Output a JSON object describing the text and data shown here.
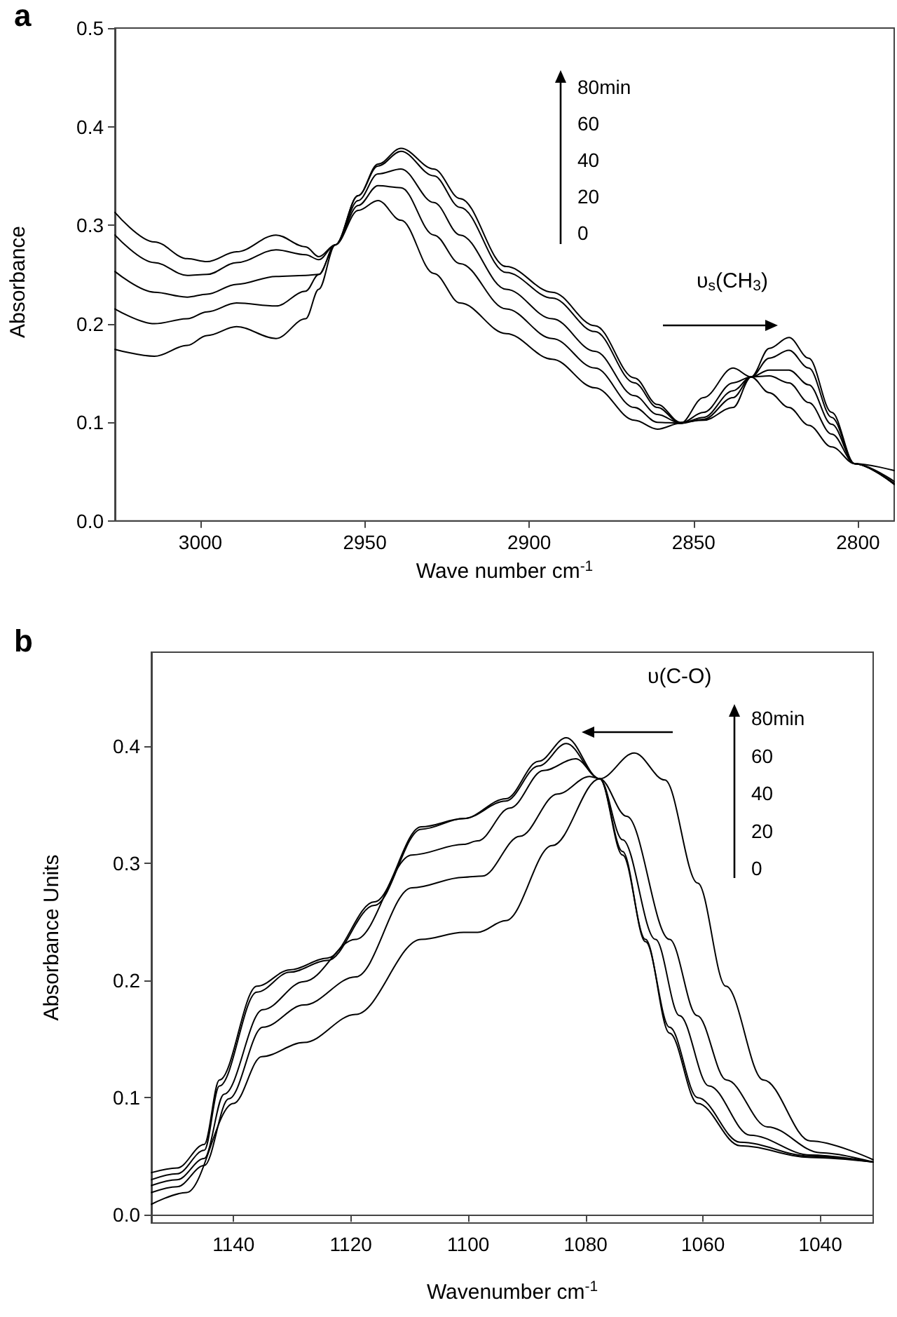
{
  "chart_data": [
    {
      "type": "line",
      "title": "a",
      "xlabel": "Wave number cm$^{-1}$",
      "ylabel": "Absorbance",
      "annotations": [
        "υ$_{s}$(CH$_{3}$)",
        "80min",
        "60",
        "40",
        "20",
        "0"
      ],
      "marker": "none",
      "line_style": "solid",
      "xlim": [
        3026,
        2789
      ],
      "ylim": [
        0,
        0.5
      ],
      "xticks": [
        3000,
        2950,
        2900,
        2850,
        2800
      ],
      "yticks": [
        {
          "value": 0,
          "label": "0.0"
        },
        0.1,
        0.2,
        0.3,
        0.4,
        0.5
      ],
      "x": [
        3026,
        3014,
        3004,
        2998,
        2989,
        2977,
        2968,
        2964,
        2959,
        2952,
        2946,
        2939,
        2929,
        2921,
        2907,
        2893,
        2880,
        2868,
        2861,
        2854,
        2847,
        2838,
        2832.5,
        2827,
        2821,
        2815,
        2808,
        2801,
        2789
      ],
      "series": [
        {
          "color": "#000000",
          "values": [
            0.313,
            0.283,
            0.266,
            0.263,
            0.273,
            0.29,
            0.278,
            0.268,
            0.28,
            0.33,
            0.362,
            0.378,
            0.357,
            0.327,
            0.258,
            0.232,
            0.198,
            0.145,
            0.118,
            0.1,
            0.102,
            0.115,
            0.146,
            0.175,
            0.186,
            0.165,
            0.11,
            0.058,
            0.038
          ]
        },
        {
          "color": "#000000",
          "values": [
            0.29,
            0.262,
            0.249,
            0.25,
            0.262,
            0.275,
            0.27,
            0.265,
            0.28,
            0.33,
            0.36,
            0.375,
            0.35,
            0.318,
            0.252,
            0.226,
            0.192,
            0.14,
            0.115,
            0.099,
            0.103,
            0.125,
            0.146,
            0.165,
            0.173,
            0.155,
            0.105,
            0.058,
            0.037
          ]
        },
        {
          "color": "#000000",
          "values": [
            0.253,
            0.232,
            0.227,
            0.23,
            0.24,
            0.248,
            0.249,
            0.25,
            0.28,
            0.325,
            0.352,
            0.357,
            0.323,
            0.29,
            0.235,
            0.205,
            0.172,
            0.127,
            0.108,
            0.099,
            0.105,
            0.132,
            0.146,
            0.153,
            0.153,
            0.138,
            0.098,
            0.058,
            0.037
          ]
        },
        {
          "color": "#000000",
          "values": [
            0.215,
            0.2,
            0.205,
            0.212,
            0.221,
            0.218,
            0.233,
            0.25,
            0.28,
            0.32,
            0.34,
            0.338,
            0.29,
            0.261,
            0.215,
            0.185,
            0.155,
            0.115,
            0.1,
            0.099,
            0.11,
            0.14,
            0.146,
            0.147,
            0.14,
            0.12,
            0.088,
            0.058,
            0.04
          ]
        },
        {
          "color": "#000000",
          "values": [
            0.174,
            0.167,
            0.178,
            0.188,
            0.197,
            0.185,
            0.205,
            0.235,
            0.28,
            0.315,
            0.325,
            0.305,
            0.251,
            0.221,
            0.19,
            0.164,
            0.135,
            0.102,
            0.093,
            0.099,
            0.125,
            0.155,
            0.146,
            0.13,
            0.115,
            0.097,
            0.075,
            0.058,
            0.051
          ]
        }
      ]
    },
    {
      "type": "line",
      "title": "b",
      "xlabel": "Wavenumber cm$^{-1}$",
      "ylabel": "Absorbance Units",
      "annotations": [
        "υ(C-O)",
        "80min",
        "60",
        "40",
        "20",
        "0"
      ],
      "marker": "none",
      "line_style": "solid",
      "xlim": [
        1154,
        1031
      ],
      "ylim": [
        -0.007,
        0.48
      ],
      "xticks": [
        1140,
        1120,
        1100,
        1080,
        1060,
        1040
      ],
      "yticks": [
        {
          "value": 0,
          "label": "0.0"
        },
        0.1,
        0.2,
        0.3,
        0.4
      ],
      "series": [
        {
          "color": "#000000",
          "x": [
            1154,
            1149.6,
            1145,
            1142.4,
            1136,
            1130.4,
            1124,
            1116,
            1108,
            1100.8,
            1093.6,
            1088,
            1083.3,
            1077.6,
            1073.7,
            1069.8,
            1065.7,
            1060.9,
            1053.7,
            1041.7,
            1031
          ],
          "values": [
            0.036,
            0.04,
            0.06,
            0.115,
            0.195,
            0.209,
            0.219,
            0.267,
            0.331,
            0.338,
            0.355,
            0.387,
            0.407,
            0.372,
            0.307,
            0.235,
            0.155,
            0.095,
            0.059,
            0.049,
            0.045
          ]
        },
        {
          "color": "#000000",
          "x": [
            1154,
            1149.6,
            1145,
            1142.4,
            1136,
            1130.4,
            1124,
            1116,
            1108,
            1100.8,
            1093.6,
            1088,
            1083.3,
            1077.6,
            1073.7,
            1069.8,
            1065.7,
            1060.9,
            1053.7,
            1041.7,
            1031
          ],
          "values": [
            0.03,
            0.035,
            0.055,
            0.11,
            0.19,
            0.207,
            0.217,
            0.264,
            0.329,
            0.338,
            0.353,
            0.383,
            0.402,
            0.372,
            0.31,
            0.233,
            0.16,
            0.1,
            0.062,
            0.05,
            0.045
          ]
        },
        {
          "color": "#000000",
          "x": [
            1154,
            1149.6,
            1145,
            1141.6,
            1135,
            1128,
            1119.2,
            1109.6,
            1100.8,
            1098.4,
            1092.9,
            1087.2,
            1081.7,
            1077.6,
            1073.7,
            1068.1,
            1064,
            1059,
            1052,
            1041.7,
            1031
          ],
          "values": [
            0.025,
            0.03,
            0.048,
            0.103,
            0.175,
            0.199,
            0.235,
            0.307,
            0.316,
            0.319,
            0.347,
            0.379,
            0.389,
            0.372,
            0.32,
            0.235,
            0.17,
            0.11,
            0.068,
            0.051,
            0.045
          ]
        },
        {
          "color": "#000000",
          "x": [
            1154,
            1149.6,
            1145,
            1140.8,
            1135,
            1128,
            1119.2,
            1109.6,
            1100.8,
            1097.6,
            1091.2,
            1084.8,
            1079.3,
            1077.6,
            1073,
            1065.7,
            1061,
            1056,
            1049,
            1040,
            1031
          ],
          "values": [
            0.019,
            0.024,
            0.042,
            0.099,
            0.16,
            0.179,
            0.203,
            0.279,
            0.288,
            0.289,
            0.323,
            0.359,
            0.374,
            0.372,
            0.34,
            0.235,
            0.17,
            0.115,
            0.075,
            0.053,
            0.045
          ]
        },
        {
          "color": "#000000",
          "x": [
            1154,
            1148,
            1140,
            1135.2,
            1128,
            1119.2,
            1108,
            1100.8,
            1098.4,
            1093.6,
            1085.7,
            1077.6,
            1071.7,
            1066.5,
            1060.9,
            1056.1,
            1049.7,
            1041.7,
            1031
          ],
          "values": [
            0.009,
            0.019,
            0.095,
            0.135,
            0.147,
            0.171,
            0.235,
            0.241,
            0.241,
            0.251,
            0.315,
            0.372,
            0.394,
            0.371,
            0.283,
            0.195,
            0.115,
            0.063,
            0.047
          ]
        }
      ]
    }
  ]
}
